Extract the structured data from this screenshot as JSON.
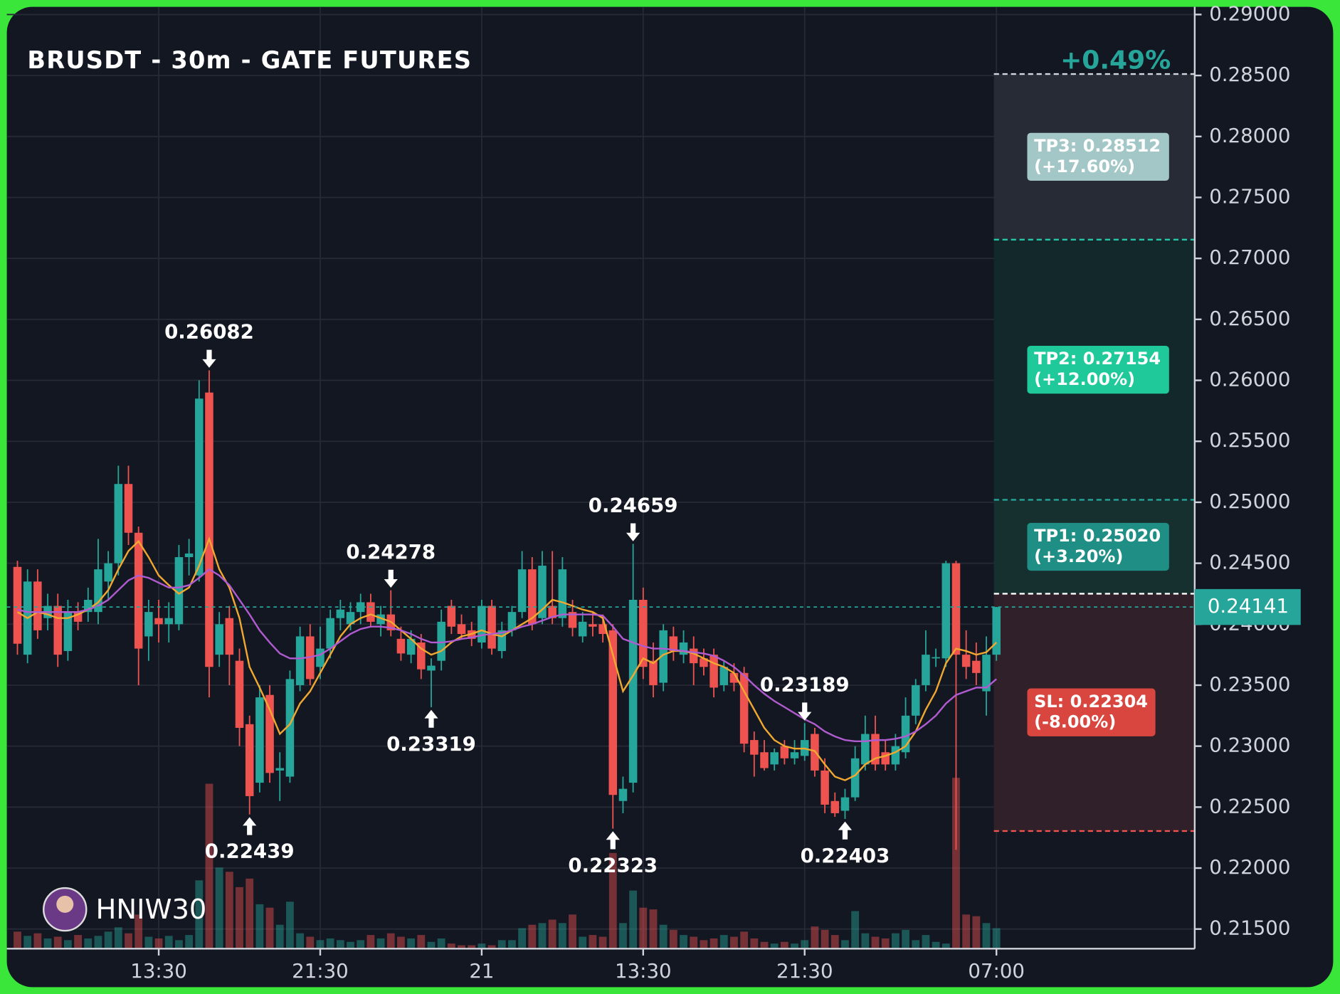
{
  "chart_data": {
    "type": "candlestick",
    "title": "BRUSDT - 30m - GATE FUTURES",
    "change_label": "+0.49%",
    "watermark": "HNIW30",
    "up_color": "#26a69a",
    "down_color": "#ef5350",
    "grid": true,
    "ylim": [
      0.215,
      0.29
    ],
    "yticks": [
      {
        "value": 0.29,
        "label": "0.29000"
      },
      {
        "value": 0.285,
        "label": "0.28500"
      },
      {
        "value": 0.28,
        "label": "0.28000"
      },
      {
        "value": 0.275,
        "label": "0.27500"
      },
      {
        "value": 0.27,
        "label": "0.27000"
      },
      {
        "value": 0.265,
        "label": "0.26500"
      },
      {
        "value": 0.26,
        "label": "0.26000"
      },
      {
        "value": 0.255,
        "label": "0.25500"
      },
      {
        "value": 0.25,
        "label": "0.25000"
      },
      {
        "value": 0.245,
        "label": "0.24500"
      },
      {
        "value": 0.24,
        "label": "0.24000"
      },
      {
        "value": 0.235,
        "label": "0.23500"
      },
      {
        "value": 0.23,
        "label": "0.23000"
      },
      {
        "value": 0.225,
        "label": "0.22500"
      },
      {
        "value": 0.22,
        "label": "0.22000"
      },
      {
        "value": 0.215,
        "label": "0.21500"
      }
    ],
    "xticks": [
      {
        "value": 14,
        "label": "13:30"
      },
      {
        "value": 30,
        "label": "21:30"
      },
      {
        "value": 46,
        "label": "21"
      },
      {
        "value": 62,
        "label": "13:30"
      },
      {
        "value": 78,
        "label": "21:30"
      },
      {
        "value": 97,
        "label": "07:00"
      }
    ],
    "candles": [
      [
        0.2447,
        0.2452,
        0.2375,
        0.2384
      ],
      [
        0.2375,
        0.2445,
        0.2368,
        0.2435
      ],
      [
        0.2435,
        0.2445,
        0.2388,
        0.2395
      ],
      [
        0.2405,
        0.2425,
        0.2395,
        0.2415
      ],
      [
        0.2415,
        0.2425,
        0.2365,
        0.2375
      ],
      [
        0.2378,
        0.242,
        0.237,
        0.241
      ],
      [
        0.241,
        0.2418,
        0.2395,
        0.2402
      ],
      [
        0.241,
        0.243,
        0.2402,
        0.242
      ],
      [
        0.241,
        0.247,
        0.24,
        0.2445
      ],
      [
        0.2435,
        0.246,
        0.242,
        0.245
      ],
      [
        0.245,
        0.253,
        0.244,
        0.2515
      ],
      [
        0.2515,
        0.253,
        0.2465,
        0.2475
      ],
      [
        0.2475,
        0.248,
        0.235,
        0.238
      ],
      [
        0.239,
        0.242,
        0.237,
        0.241
      ],
      [
        0.2405,
        0.242,
        0.2385,
        0.24
      ],
      [
        0.24,
        0.2418,
        0.2385,
        0.2405
      ],
      [
        0.24,
        0.2465,
        0.2395,
        0.2455
      ],
      [
        0.2455,
        0.247,
        0.244,
        0.2458
      ],
      [
        0.244,
        0.26,
        0.2435,
        0.2585
      ],
      [
        0.259,
        0.26082,
        0.234,
        0.2365
      ],
      [
        0.2375,
        0.241,
        0.2365,
        0.24
      ],
      [
        0.2405,
        0.2415,
        0.235,
        0.2375
      ],
      [
        0.237,
        0.238,
        0.23,
        0.2315
      ],
      [
        0.2318,
        0.2325,
        0.22439,
        0.2259
      ],
      [
        0.227,
        0.235,
        0.2262,
        0.234
      ],
      [
        0.2342,
        0.235,
        0.227,
        0.2278
      ],
      [
        0.228,
        0.2295,
        0.2255,
        0.2282
      ],
      [
        0.2275,
        0.2362,
        0.227,
        0.2355
      ],
      [
        0.235,
        0.2398,
        0.2345,
        0.239
      ],
      [
        0.239,
        0.24,
        0.235,
        0.2355
      ],
      [
        0.2365,
        0.2398,
        0.2355,
        0.238
      ],
      [
        0.238,
        0.2412,
        0.2372,
        0.2405
      ],
      [
        0.2405,
        0.242,
        0.2395,
        0.2412
      ],
      [
        0.24,
        0.2418,
        0.2395,
        0.241
      ],
      [
        0.241,
        0.2425,
        0.24,
        0.2418
      ],
      [
        0.2418,
        0.2425,
        0.2398,
        0.2402
      ],
      [
        0.24,
        0.2415,
        0.239,
        0.2408
      ],
      [
        0.2408,
        0.24278,
        0.239,
        0.2395
      ],
      [
        0.2388,
        0.2398,
        0.237,
        0.2376
      ],
      [
        0.2375,
        0.2395,
        0.2368,
        0.2388
      ],
      [
        0.2385,
        0.2392,
        0.2355,
        0.2363
      ],
      [
        0.2362,
        0.2372,
        0.23319,
        0.2366
      ],
      [
        0.237,
        0.2412,
        0.2362,
        0.2402
      ],
      [
        0.2415,
        0.242,
        0.2392,
        0.2398
      ],
      [
        0.24,
        0.2408,
        0.2388,
        0.2392
      ],
      [
        0.2395,
        0.2402,
        0.2382,
        0.2388
      ],
      [
        0.2385,
        0.242,
        0.238,
        0.2415
      ],
      [
        0.2415,
        0.242,
        0.2375,
        0.238
      ],
      [
        0.2378,
        0.2402,
        0.2372,
        0.2395
      ],
      [
        0.2395,
        0.2415,
        0.239,
        0.241
      ],
      [
        0.241,
        0.246,
        0.2405,
        0.2445
      ],
      [
        0.2445,
        0.2455,
        0.2395,
        0.24
      ],
      [
        0.2405,
        0.246,
        0.24,
        0.2448
      ],
      [
        0.2415,
        0.246,
        0.24,
        0.2405
      ],
      [
        0.2405,
        0.2455,
        0.2398,
        0.2445
      ],
      [
        0.241,
        0.242,
        0.239,
        0.2397
      ],
      [
        0.239,
        0.241,
        0.2385,
        0.2402
      ],
      [
        0.24,
        0.241,
        0.239,
        0.2398
      ],
      [
        0.24,
        0.2408,
        0.2385,
        0.2392
      ],
      [
        0.2395,
        0.24,
        0.22323,
        0.226
      ],
      [
        0.2255,
        0.2275,
        0.2245,
        0.2265
      ],
      [
        0.227,
        0.24659,
        0.2262,
        0.242
      ],
      [
        0.242,
        0.243,
        0.2355,
        0.2365
      ],
      [
        0.237,
        0.2385,
        0.234,
        0.235
      ],
      [
        0.2352,
        0.24,
        0.2345,
        0.2395
      ],
      [
        0.239,
        0.2398,
        0.237,
        0.2378
      ],
      [
        0.2375,
        0.2395,
        0.2368,
        0.2385
      ],
      [
        0.238,
        0.239,
        0.235,
        0.2368
      ],
      [
        0.2372,
        0.238,
        0.2358,
        0.2365
      ],
      [
        0.2375,
        0.238,
        0.234,
        0.2348
      ],
      [
        0.235,
        0.237,
        0.2345,
        0.2365
      ],
      [
        0.236,
        0.2368,
        0.2345,
        0.2352
      ],
      [
        0.236,
        0.2365,
        0.2295,
        0.2302
      ],
      [
        0.2305,
        0.2312,
        0.2275,
        0.2293
      ],
      [
        0.2295,
        0.2305,
        0.228,
        0.2282
      ],
      [
        0.2285,
        0.2298,
        0.228,
        0.2295
      ],
      [
        0.23,
        0.2305,
        0.2285,
        0.229
      ],
      [
        0.229,
        0.2305,
        0.2285,
        0.2295
      ],
      [
        0.2292,
        0.23189,
        0.2288,
        0.2305
      ],
      [
        0.231,
        0.2315,
        0.2275,
        0.228
      ],
      [
        0.228,
        0.229,
        0.2245,
        0.2252
      ],
      [
        0.2255,
        0.2262,
        0.2242,
        0.2245
      ],
      [
        0.2247,
        0.2265,
        0.22403,
        0.2258
      ],
      [
        0.2258,
        0.23,
        0.2255,
        0.229
      ],
      [
        0.2285,
        0.2325,
        0.228,
        0.231
      ],
      [
        0.231,
        0.2325,
        0.228,
        0.2285
      ],
      [
        0.2295,
        0.2305,
        0.228,
        0.2285
      ],
      [
        0.2285,
        0.231,
        0.228,
        0.23
      ],
      [
        0.2295,
        0.234,
        0.229,
        0.2325
      ],
      [
        0.2325,
        0.2355,
        0.2318,
        0.235
      ],
      [
        0.235,
        0.2395,
        0.2345,
        0.2375
      ],
      [
        0.2372,
        0.238,
        0.2365,
        0.2373
      ],
      [
        0.2372,
        0.2452,
        0.2365,
        0.245
      ],
      [
        0.245,
        0.2452,
        0.2215,
        0.2375
      ],
      [
        0.2375,
        0.2395,
        0.2355,
        0.2365
      ],
      [
        0.237,
        0.2385,
        0.235,
        0.236
      ],
      [
        0.2345,
        0.239,
        0.2325,
        0.2375
      ],
      [
        0.2375,
        0.24141,
        0.237,
        0.24141
      ]
    ],
    "volumes": [
      20,
      15,
      18,
      12,
      14,
      10,
      16,
      12,
      15,
      20,
      25,
      18,
      40,
      14,
      12,
      15,
      10,
      16,
      80,
      193,
      95,
      90,
      72,
      82,
      52,
      48,
      28,
      55,
      18,
      14,
      10,
      12,
      10,
      8,
      10,
      16,
      12,
      18,
      14,
      12,
      16,
      8,
      12,
      6,
      4,
      4,
      6,
      4,
      10,
      10,
      24,
      28,
      30,
      34,
      30,
      40,
      14,
      16,
      14,
      112,
      30,
      68,
      48,
      46,
      28,
      22,
      16,
      14,
      10,
      12,
      16,
      14,
      20,
      12,
      8,
      6,
      8,
      6,
      10,
      26,
      22,
      16,
      10,
      44,
      18,
      14,
      12,
      18,
      22,
      10,
      16,
      8,
      6,
      200,
      40,
      38,
      30,
      24
    ],
    "moving_averages": [
      {
        "color": "#f0a830",
        "values": [
          0.241,
          0.2405,
          0.241,
          0.2408,
          0.2405,
          0.2405,
          0.2408,
          0.2412,
          0.2418,
          0.2428,
          0.2445,
          0.246,
          0.2468,
          0.2455,
          0.244,
          0.2432,
          0.2425,
          0.243,
          0.2448,
          0.247,
          0.2445,
          0.243,
          0.2405,
          0.2365,
          0.2348,
          0.233,
          0.231,
          0.2318,
          0.2335,
          0.2345,
          0.236,
          0.2375,
          0.239,
          0.24,
          0.2405,
          0.2408,
          0.2405,
          0.2402,
          0.2395,
          0.2388,
          0.238,
          0.2375,
          0.2378,
          0.2385,
          0.239,
          0.2392,
          0.2395,
          0.2392,
          0.239,
          0.2395,
          0.24,
          0.2405,
          0.2412,
          0.242,
          0.2418,
          0.2415,
          0.2412,
          0.241,
          0.2405,
          0.2375,
          0.2345,
          0.2358,
          0.2372,
          0.2368,
          0.2375,
          0.2378,
          0.2378,
          0.2376,
          0.2372,
          0.2368,
          0.2365,
          0.236,
          0.2345,
          0.233,
          0.2315,
          0.2305,
          0.23,
          0.2298,
          0.2298,
          0.2296,
          0.2285,
          0.2275,
          0.2272,
          0.2276,
          0.2285,
          0.229,
          0.2292,
          0.2295,
          0.23,
          0.2312,
          0.233,
          0.2345,
          0.2368,
          0.238,
          0.2378,
          0.2375,
          0.2377,
          0.2385
        ]
      },
      {
        "color": "#b05cd0",
        "values": [
          0.2412,
          0.241,
          0.241,
          0.241,
          0.241,
          0.241,
          0.241,
          0.2412,
          0.2415,
          0.242,
          0.2428,
          0.2436,
          0.244,
          0.2438,
          0.2434,
          0.243,
          0.243,
          0.2432,
          0.2438,
          0.2445,
          0.244,
          0.2432,
          0.242,
          0.2408,
          0.2395,
          0.2385,
          0.2376,
          0.2372,
          0.2372,
          0.2373,
          0.2375,
          0.238,
          0.2386,
          0.2392,
          0.2396,
          0.2398,
          0.2398,
          0.2397,
          0.2395,
          0.2392,
          0.2388,
          0.2385,
          0.2385,
          0.2386,
          0.2388,
          0.2389,
          0.2391,
          0.2392,
          0.2393,
          0.2395,
          0.2398,
          0.24,
          0.2403,
          0.2406,
          0.2408,
          0.2408,
          0.2408,
          0.2408,
          0.2407,
          0.2398,
          0.2388,
          0.2385,
          0.2382,
          0.238,
          0.238,
          0.2379,
          0.2378,
          0.2377,
          0.2376,
          0.2374,
          0.237,
          0.2365,
          0.2358,
          0.235,
          0.2343,
          0.2337,
          0.2332,
          0.2327,
          0.2322,
          0.2318,
          0.2312,
          0.2308,
          0.2305,
          0.2304,
          0.2304,
          0.2305,
          0.2305,
          0.2306,
          0.2308,
          0.2312,
          0.2318,
          0.2325,
          0.2335,
          0.2342,
          0.2345,
          0.2348,
          0.2348,
          0.2355
        ]
      }
    ],
    "annotations": [
      {
        "x": 19,
        "value": 0.26082,
        "side": "above"
      },
      {
        "x": 23,
        "value": 0.22439,
        "side": "below"
      },
      {
        "x": 37,
        "value": 0.24278,
        "side": "above"
      },
      {
        "x": 41,
        "value": 0.23319,
        "side": "below"
      },
      {
        "x": 61,
        "value": 0.24659,
        "side": "above"
      },
      {
        "x": 59,
        "value": 0.22323,
        "side": "below"
      },
      {
        "x": 78,
        "value": 0.23189,
        "side": "above"
      },
      {
        "x": 82,
        "value": 0.22403,
        "side": "below"
      }
    ],
    "last_price": {
      "value": 0.24141,
      "label": "0.24141",
      "color": "#26a69a"
    },
    "position": {
      "entry": 0.2425,
      "targets": [
        {
          "label": "TP3: 0.28512",
          "change": "(+17.60%)",
          "value": 0.28512,
          "color": "#a3c7c7",
          "line_color": "#cfd8dc",
          "zone_color": "#262b35"
        },
        {
          "label": "TP2: 0.27154",
          "change": "(+12.00%)",
          "value": 0.27154,
          "color": "#1fc99a",
          "line_color": "#26c6a8",
          "zone_color": "#13282b"
        },
        {
          "label": "TP1: 0.25020",
          "change": "(+3.20%)",
          "value": 0.2502,
          "color": "#1f8f86",
          "line_color": "#26a69a",
          "zone_color": "#16302f"
        }
      ],
      "stop": {
        "label": "SL: 0.22304",
        "change": "(-8.00%)",
        "value": 0.22304,
        "color": "#d9463f",
        "line_color": "#ef5350",
        "zone_color": "#2f2029"
      }
    }
  }
}
